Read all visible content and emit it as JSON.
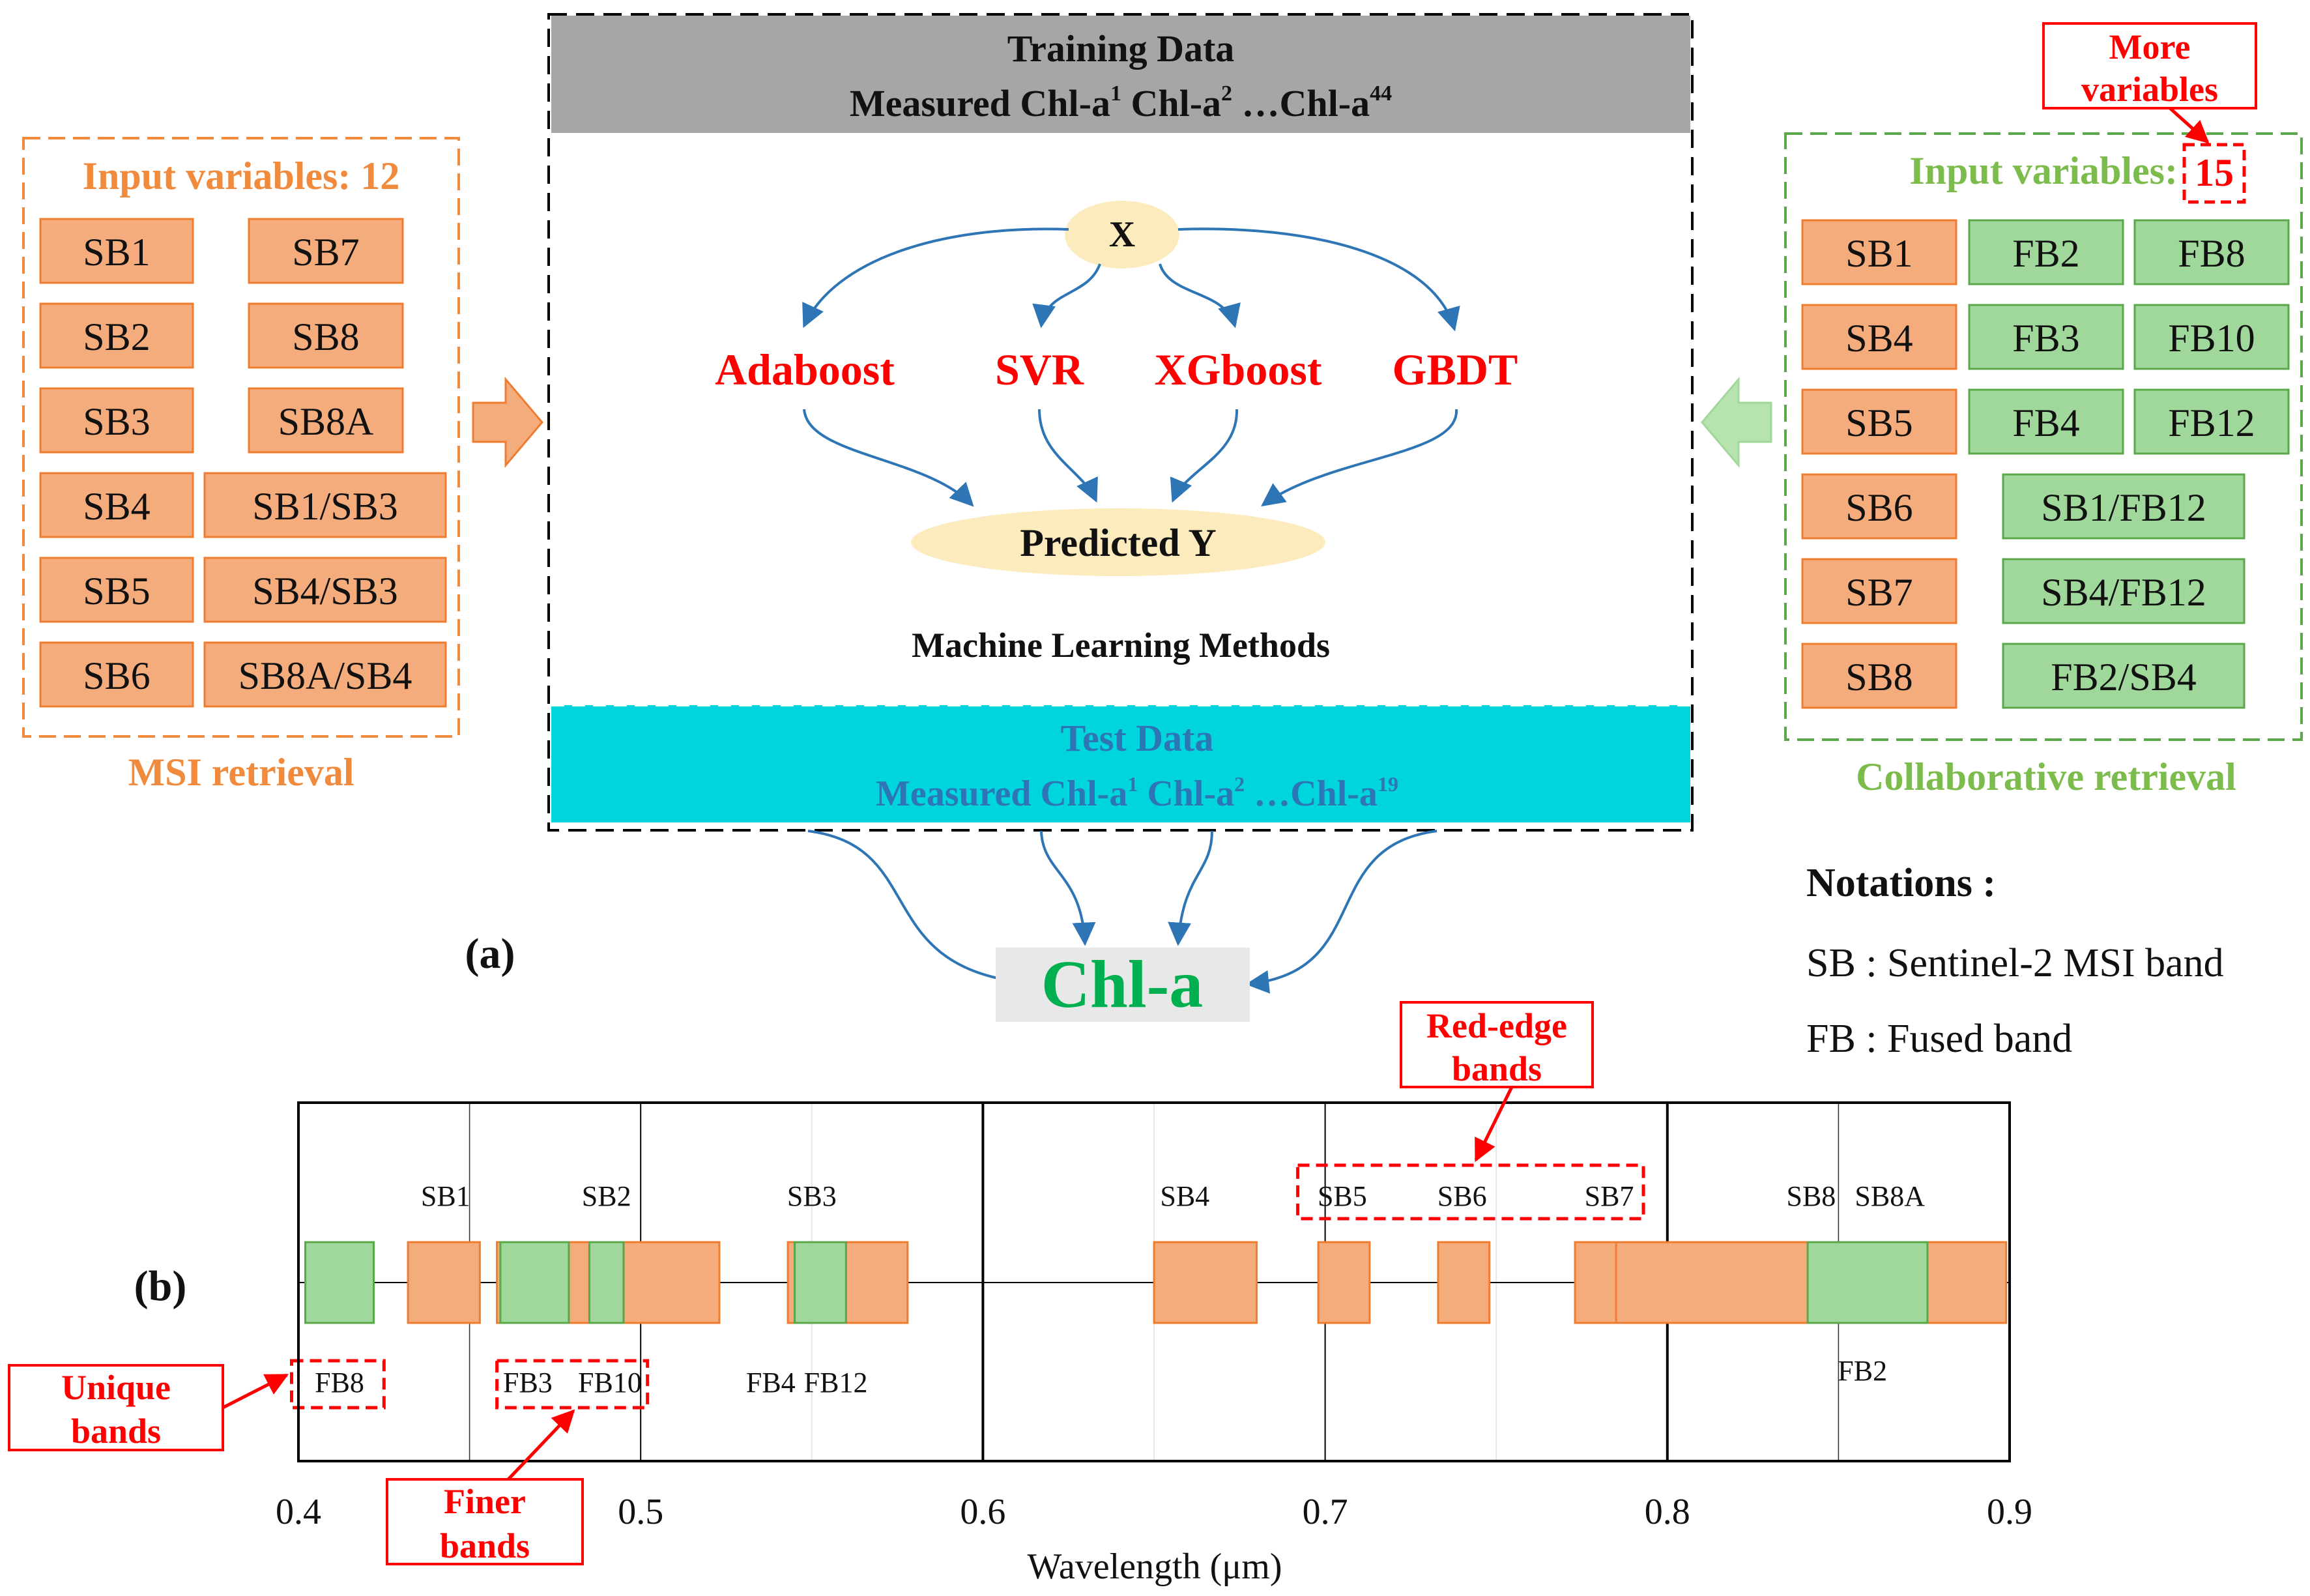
{
  "colors": {
    "orange": "#f4ac7c",
    "orange_stroke": "#ef7d31",
    "orange_text": "#f08a3c",
    "green": "#9fd89a",
    "green_stroke": "#5aa84a",
    "green_text": "#7cbc4c",
    "red": "#ff0000",
    "blue": "#2e75b6",
    "gray": "#a6a6a6",
    "cyan": "#00d4dc",
    "cream": "#fcebbd",
    "chla_green": "#00b050"
  },
  "training": {
    "title": "Training Data",
    "subtitle_main": "Measured Chl-a",
    "sup1": "1",
    "chla2": "Chl-a",
    "sup2": "2",
    "ellipsis": "…Chl-a",
    "sup_n": "44"
  },
  "test": {
    "title": "Test Data",
    "subtitle_main": "Measured Chl-a",
    "sup1": "1",
    "chla2": "Chl-a",
    "sup2": "2",
    "ellipsis": "…Chl-a",
    "sup_n": "19"
  },
  "ml": {
    "x_label": "X",
    "methods": [
      "Adaboost",
      "SVR",
      "XGboost",
      "GBDT"
    ],
    "predicted": "Predicted Y",
    "caption": "Machine Learning Methods"
  },
  "output": {
    "label": "Chl-a"
  },
  "panel_a_label": "(a)",
  "panel_b_label": "(b)",
  "msi": {
    "header": "Input variables: 12",
    "footer": "MSI retrieval",
    "left": [
      "SB1",
      "SB2",
      "SB3",
      "SB4",
      "SB5",
      "SB6"
    ],
    "right": [
      "SB7",
      "SB8",
      "SB8A",
      "SB1/SB3",
      "SB4/SB3",
      "SB8A/SB4"
    ]
  },
  "collab": {
    "header": "Input variables:",
    "count": "15",
    "footer": "Collaborative retrieval",
    "sb": [
      "SB1",
      "SB4",
      "SB5",
      "SB6",
      "SB7",
      "SB8"
    ],
    "fb_mid": [
      "FB2",
      "FB3",
      "FB4"
    ],
    "fb_right": [
      "FB8",
      "FB10",
      "FB12"
    ],
    "ratios": [
      "SB1/FB12",
      "SB4/FB12",
      "FB2/SB4"
    ],
    "more_variables": [
      "More",
      "variables"
    ]
  },
  "notations": {
    "title": "Notations :",
    "sb": "SB : Sentinel-2 MSI band",
    "fb": "FB : Fused band"
  },
  "chart_data": {
    "type": "range",
    "xlabel": "Wavelength (μm)",
    "xlim": [
      0.4,
      0.9
    ],
    "xticks": [
      "0.4",
      "0.5",
      "0.6",
      "0.7",
      "0.8",
      "0.9"
    ],
    "xtick_values": [
      0.4,
      0.5,
      0.6,
      0.7,
      0.8,
      0.9
    ],
    "sb_bands": [
      {
        "name": "SB1",
        "min": 0.432,
        "max": 0.453
      },
      {
        "name": "SB2",
        "min": 0.458,
        "max": 0.523
      },
      {
        "name": "SB3",
        "min": 0.543,
        "max": 0.578
      },
      {
        "name": "SB4",
        "min": 0.65,
        "max": 0.68
      },
      {
        "name": "SB5",
        "min": 0.698,
        "max": 0.713
      },
      {
        "name": "SB6",
        "min": 0.733,
        "max": 0.748
      },
      {
        "name": "SB7",
        "min": 0.773,
        "max": 0.793
      },
      {
        "name": "SB8",
        "min": 0.785,
        "max": 0.899
      },
      {
        "name": "SB8A",
        "min": 0.855,
        "max": 0.875
      }
    ],
    "sb_labels": [
      {
        "text": "SB1",
        "x": 0.443
      },
      {
        "text": "SB2",
        "x": 0.49
      },
      {
        "text": "SB3",
        "x": 0.55
      },
      {
        "text": "SB4",
        "x": 0.659
      },
      {
        "text": "SB5",
        "x": 0.705
      },
      {
        "text": "SB6",
        "x": 0.74
      },
      {
        "text": "SB7",
        "x": 0.783
      },
      {
        "text": "SB8",
        "x": 0.842
      },
      {
        "text": "SB8A",
        "x": 0.865
      }
    ],
    "fb_bands": [
      {
        "name": "FB8",
        "min": 0.402,
        "max": 0.422
      },
      {
        "name": "FB3",
        "min": 0.459,
        "max": 0.479
      },
      {
        "name": "FB10",
        "min": 0.485,
        "max": 0.495
      },
      {
        "name": "FB4",
        "min": 0.545,
        "max": 0.555
      },
      {
        "name": "FB12",
        "min": 0.545,
        "max": 0.56
      },
      {
        "name": "FB2",
        "min": 0.841,
        "max": 0.876
      }
    ],
    "fb_labels": [
      {
        "text": "FB8",
        "x": 0.412,
        "row": 0
      },
      {
        "text": "FB3",
        "x": 0.467,
        "row": 0
      },
      {
        "text": "FB10",
        "x": 0.491,
        "row": 0
      },
      {
        "text": "FB4",
        "x": 0.538,
        "row": 0
      },
      {
        "text": "FB12",
        "x": 0.557,
        "row": 0
      },
      {
        "text": "FB2",
        "x": 0.857,
        "row": 1
      }
    ],
    "annotations": {
      "red_edge": [
        "Red-edge",
        "bands"
      ],
      "unique": [
        "Unique",
        "bands"
      ],
      "finer": [
        "Finer",
        "bands"
      ]
    }
  }
}
